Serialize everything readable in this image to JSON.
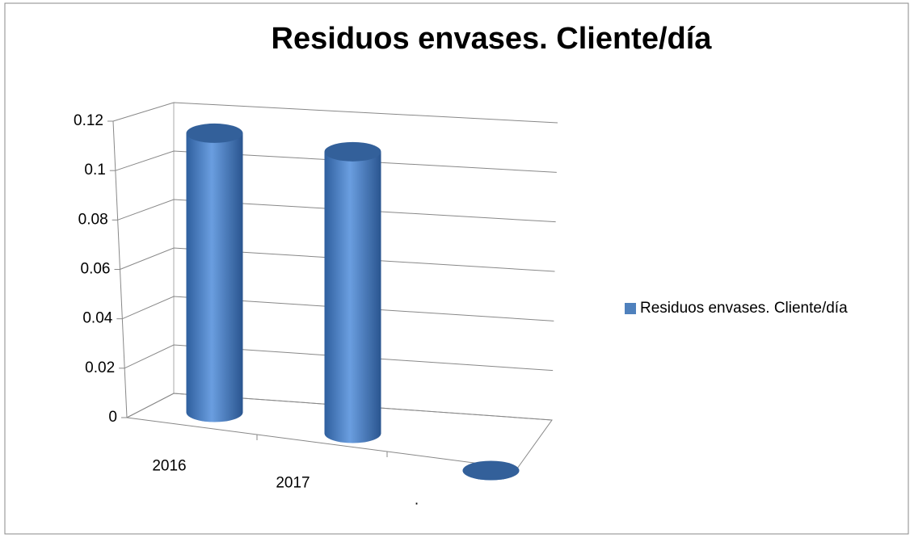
{
  "chart_data": {
    "type": "bar3d",
    "title": "Residuos envases. Cliente/día",
    "categories": [
      "2016",
      "2017",
      "."
    ],
    "series": [
      {
        "name": "Residuos envases. Cliente/día",
        "color": "#4f81bd",
        "values": [
          0.113,
          0.114,
          0
        ]
      }
    ],
    "ylim": [
      0,
      0.12
    ],
    "yticks": [
      0,
      0.02,
      0.04,
      0.06,
      0.08,
      0.1,
      0.12
    ],
    "grid": true,
    "legend": "right"
  }
}
